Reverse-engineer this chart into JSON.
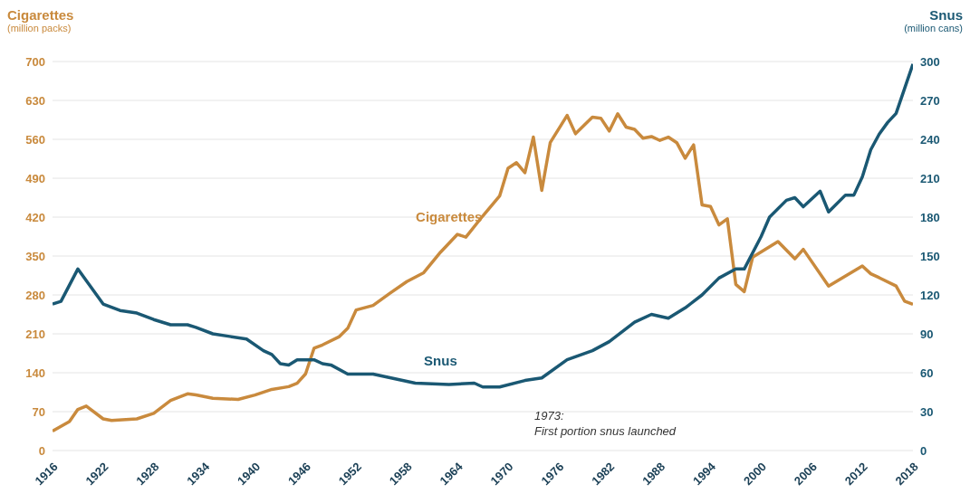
{
  "chart_data": {
    "type": "line",
    "ylabel": "Cigarettes\n(million packs)",
    "y2label": "Snus\n(million cans)",
    "series": [
      {
        "name": "Cigarettes",
        "color": "#c98a3d",
        "x": [
          1916,
          1918,
          1919,
          1920,
          1922,
          1923,
          1926,
          1928,
          1930,
          1932,
          1933,
          1935,
          1938,
          1940,
          1942,
          1944,
          1945,
          1946,
          1947,
          1948,
          1950,
          1951,
          1952,
          1954,
          1956,
          1958,
          1960,
          1962,
          1964,
          1965,
          1967,
          1969,
          1970,
          1971,
          1972,
          1973,
          1974,
          1975,
          1977,
          1978,
          1980,
          1981,
          1982,
          1983,
          1984,
          1985,
          1986,
          1987,
          1988,
          1989,
          1990,
          1991,
          1992,
          1993,
          1994,
          1995,
          1996,
          1997,
          1998,
          1999,
          2002,
          2004,
          2005,
          2008,
          2012,
          2013,
          2014,
          2016,
          2017,
          2018
        ],
        "values": [
          35,
          52,
          74,
          80,
          57,
          54,
          57,
          67,
          90,
          102,
          100,
          94,
          92,
          100,
          110,
          115,
          121,
          138,
          184,
          190,
          205,
          220,
          253,
          261,
          283,
          304,
          320,
          357,
          389,
          384,
          422,
          458,
          508,
          518,
          500,
          564,
          468,
          554,
          603,
          570,
          600,
          598,
          575,
          606,
          582,
          578,
          562,
          565,
          558,
          564,
          554,
          526,
          550,
          442,
          439,
          406,
          417,
          299,
          286,
          348,
          376,
          345,
          362,
          296,
          332,
          318,
          311,
          296,
          269,
          263
        ]
      },
      {
        "name": "Snus",
        "color": "#1a5873",
        "axis": "y2",
        "x": [
          1916,
          1917,
          1919,
          1922,
          1924,
          1926,
          1928,
          1930,
          1932,
          1933,
          1935,
          1937,
          1939,
          1941,
          1942,
          1943,
          1944,
          1945,
          1947,
          1948,
          1949,
          1951,
          1954,
          1959,
          1963,
          1966,
          1967,
          1969,
          1972,
          1974,
          1977,
          1980,
          1982,
          1985,
          1987,
          1989,
          1991,
          1993,
          1995,
          1997,
          1998,
          2000,
          2001,
          2003,
          2004,
          2005,
          2007,
          2008,
          2010,
          2011,
          2012,
          2013,
          2014,
          2015,
          2016,
          2017,
          2018
        ],
        "values": [
          113,
          115,
          140,
          113,
          108,
          106,
          101,
          97,
          97,
          95,
          90,
          88,
          86,
          77,
          74,
          67,
          66,
          70,
          70,
          67,
          66,
          59,
          59,
          52,
          51,
          52,
          49,
          49,
          54,
          56,
          70,
          77,
          84,
          99,
          105,
          102,
          110,
          120,
          133,
          140,
          140,
          165,
          180,
          193,
          195,
          188,
          200,
          184,
          197,
          197,
          211,
          232,
          244,
          253,
          260,
          279,
          298
        ]
      }
    ],
    "xlim": [
      1916,
      2018
    ],
    "xticks": [
      1916,
      1922,
      1928,
      1934,
      1940,
      1946,
      1952,
      1958,
      1964,
      1970,
      1976,
      1982,
      1988,
      1994,
      2000,
      2006,
      2012,
      2018
    ],
    "ylim": [
      0,
      700
    ],
    "yticks": [
      0,
      70,
      140,
      210,
      280,
      350,
      420,
      490,
      560,
      630,
      700
    ],
    "y2lim": [
      0,
      300
    ],
    "y2ticks": [
      0,
      30,
      60,
      90,
      120,
      150,
      180,
      210,
      240,
      270,
      300
    ],
    "grid": "y",
    "marker": "none",
    "line_style": "solid",
    "annotations": [
      "1973:\nFirst portion snus launched"
    ]
  }
}
